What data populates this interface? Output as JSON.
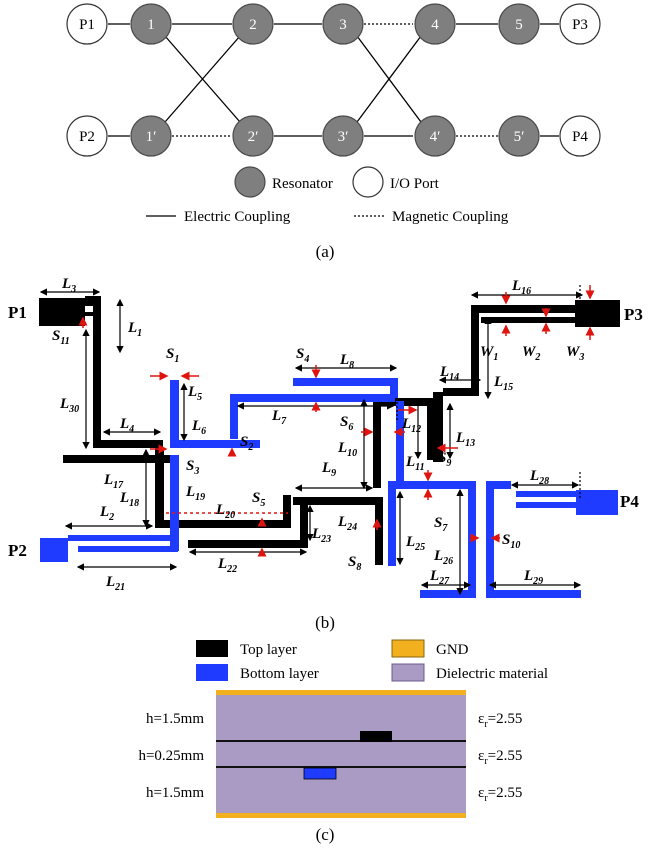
{
  "panel_a": {
    "top_nodes": [
      "P1",
      "1",
      "2",
      "3",
      "4",
      "5",
      "P3"
    ],
    "bottom_nodes": [
      "P2",
      "1′",
      "2′",
      "3′",
      "4′",
      "5′",
      "P4"
    ],
    "legend": {
      "resonator": "Resonator",
      "io_port": "I/O Port",
      "electric": "Electric Coupling",
      "magnetic": "Magnetic Coupling"
    },
    "caption": "(a)"
  },
  "panel_b": {
    "ports": {
      "p1": "P1",
      "p2": "P2",
      "p3": "P3",
      "p4": "P4"
    },
    "dims": {
      "L1": "L",
      "L1s": "1",
      "L2": "L",
      "L2s": "2",
      "L3": "L",
      "L3s": "3",
      "L4": "L",
      "L4s": "4",
      "L5": "L",
      "L5s": "5",
      "L6": "L",
      "L6s": "6",
      "L7": "L",
      "L7s": "7",
      "L8": "L",
      "L8s": "8",
      "L9": "L",
      "L9s": "9",
      "L10": "L",
      "L10s": "10",
      "L11": "L",
      "L11s": "11",
      "L12": "L",
      "L12s": "12",
      "L13": "L",
      "L13s": "13",
      "L14": "L",
      "L14s": "14",
      "L15": "L",
      "L15s": "15",
      "L16": "L",
      "L16s": "16",
      "L17": "L",
      "L17s": "17",
      "L18": "L",
      "L18s": "18",
      "L19": "L",
      "L19s": "19",
      "L20": "L",
      "L20s": "20",
      "L21": "L",
      "L21s": "21",
      "L22": "L",
      "L22s": "22",
      "L23": "L",
      "L23s": "23",
      "L24": "L",
      "L24s": "24",
      "L25": "L",
      "L25s": "25",
      "L26": "L",
      "L26s": "26",
      "L27": "L",
      "L27s": "27",
      "L28": "L",
      "L28s": "28",
      "L29": "L",
      "L29s": "29",
      "L30": "L",
      "L30s": "30",
      "S1": "S",
      "S1s": "1",
      "S2": "S",
      "S2s": "2",
      "S3": "S",
      "S3s": "3",
      "S4": "S",
      "S4s": "4",
      "S5": "S",
      "S5s": "5",
      "S6": "S",
      "S6s": "6",
      "S7": "S",
      "S7s": "7",
      "S8": "S",
      "S8s": "8",
      "S9": "S",
      "S9s": "9",
      "S10": "S",
      "S10s": "10",
      "S11": "S",
      "S11s": "11",
      "W1": "W",
      "W1s": "1",
      "W2": "W",
      "W2s": "2",
      "W3": "W",
      "W3s": "3"
    },
    "caption": "(b)"
  },
  "panel_c": {
    "legend": {
      "top": "Top layer",
      "gnd": "GND",
      "bottom": "Bottom layer",
      "dielectric": "Dielectric material"
    },
    "layers": [
      {
        "h": "h=1.5mm",
        "er_sym": "ε",
        "er_sub": "r",
        "er_val": "=2.55"
      },
      {
        "h": "h=0.25mm",
        "er_sym": "ε",
        "er_sub": "r",
        "er_val": "=2.55"
      },
      {
        "h": "h=1.5mm",
        "er_sym": "ε",
        "er_sub": "r",
        "er_val": "=2.55"
      }
    ],
    "colors": {
      "top": "#000000",
      "bottom": "#1f3bff",
      "gnd": "#f2b01e",
      "dielectric": "#a99bc4"
    },
    "caption": "(c)"
  }
}
